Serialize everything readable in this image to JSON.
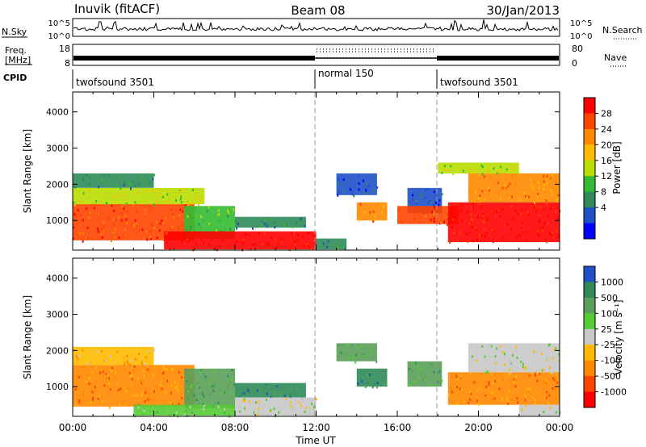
{
  "header": {
    "station": "Inuvik (fitACF)",
    "beam": "Beam 08",
    "date": "30/Jan/2013"
  },
  "strips": {
    "nsky": {
      "left_label": "N.Sky",
      "right_label": "N.Search",
      "left_ticks": [
        "10^5",
        "10^0"
      ],
      "right_ticks": [
        "10^5",
        "10^0"
      ]
    },
    "freq": {
      "left_label_1": "Freq.",
      "left_label_2": "[MHz]",
      "right_label": "Nave",
      "left_ticks": [
        "18",
        "8"
      ],
      "right_ticks": [
        "80",
        "0"
      ]
    },
    "cpid": {
      "label": "CPID",
      "segments": [
        {
          "name": "twofsound 3501",
          "start_hour": 0,
          "end_hour": 12
        },
        {
          "name": "normal 150",
          "start_hour": 12,
          "end_hour": 18
        },
        {
          "name": "twofsound 3501",
          "start_hour": 18,
          "end_hour": 24
        }
      ]
    }
  },
  "chart_data": [
    {
      "type": "heatmap",
      "name": "power",
      "ylabel": "Slant Range [km]",
      "ylim": [
        180,
        4550
      ],
      "yticks": [
        1000,
        2000,
        3000,
        4000
      ],
      "xlim": [
        0,
        24
      ],
      "colorbar": {
        "label": "Power [dB]",
        "ticks": [
          "28",
          "24",
          "20",
          "16",
          "12",
          "8",
          "4"
        ],
        "colors": [
          "#ff0000",
          "#ff4400",
          "#ff8800",
          "#ffbb00",
          "#bbdd00",
          "#33bb33",
          "#2e8b57",
          "#1e50c8",
          "#0000ff"
        ]
      },
      "regions": [
        {
          "x0": 0.0,
          "x1": 6.0,
          "y0": 450,
          "y1": 1450,
          "level": 1
        },
        {
          "x0": 0.0,
          "x1": 6.5,
          "y0": 1450,
          "y1": 1900,
          "level": 4
        },
        {
          "x0": 0.0,
          "x1": 4.0,
          "y0": 1900,
          "y1": 2300,
          "level": 6
        },
        {
          "x0": 5.5,
          "x1": 8.0,
          "y0": 500,
          "y1": 1400,
          "level": 5
        },
        {
          "x0": 8.0,
          "x1": 11.5,
          "y0": 800,
          "y1": 1100,
          "level": 6
        },
        {
          "x0": 4.5,
          "x1": 12.0,
          "y0": 200,
          "y1": 700,
          "level": 0
        },
        {
          "x0": 12.0,
          "x1": 13.5,
          "y0": 200,
          "y1": 500,
          "level": 6
        },
        {
          "x0": 13.0,
          "x1": 15.0,
          "y0": 1700,
          "y1": 2300,
          "level": 7
        },
        {
          "x0": 14.0,
          "x1": 15.5,
          "y0": 1000,
          "y1": 1500,
          "level": 2
        },
        {
          "x0": 16.5,
          "x1": 18.2,
          "y0": 1200,
          "y1": 1900,
          "level": 7
        },
        {
          "x0": 16.0,
          "x1": 19.0,
          "y0": 900,
          "y1": 1400,
          "level": 1
        },
        {
          "x0": 18.5,
          "x1": 24.0,
          "y0": 400,
          "y1": 1500,
          "level": 0
        },
        {
          "x0": 19.5,
          "x1": 24.0,
          "y0": 1500,
          "y1": 2300,
          "level": 2
        },
        {
          "x0": 18.0,
          "x1": 22.0,
          "y0": 2300,
          "y1": 2600,
          "level": 4
        }
      ]
    },
    {
      "type": "heatmap",
      "name": "velocity",
      "ylabel": "Slant Range [km]",
      "xlabel": "Time UT",
      "ylim": [
        180,
        4550
      ],
      "yticks": [
        1000,
        2000,
        3000,
        4000
      ],
      "xlim": [
        0,
        24
      ],
      "xticks": [
        "00:00",
        "04:00",
        "08:00",
        "12:00",
        "16:00",
        "20:00",
        "00:00"
      ],
      "colorbar": {
        "label": "Velocity [m s⁻¹]",
        "ticks": [
          "1000",
          "500",
          "100",
          "25",
          "-25",
          "-100",
          "-500",
          "-1000"
        ],
        "colors": [
          "#1e50c8",
          "#2e8b57",
          "#5aa05a",
          "#55cc33",
          "#c8c8c8",
          "#ffbb00",
          "#ff8800",
          "#ff4400",
          "#ff0000"
        ]
      },
      "regions": [
        {
          "x0": 0.0,
          "x1": 6.0,
          "y0": 450,
          "y1": 1600,
          "level": 6
        },
        {
          "x0": 0.0,
          "x1": 4.0,
          "y0": 1600,
          "y1": 2100,
          "level": 5
        },
        {
          "x0": 5.5,
          "x1": 8.0,
          "y0": 400,
          "y1": 1500,
          "level": 2
        },
        {
          "x0": 8.0,
          "x1": 11.5,
          "y0": 700,
          "y1": 1100,
          "level": 1
        },
        {
          "x0": 3.0,
          "x1": 8.0,
          "y0": 200,
          "y1": 500,
          "level": 3
        },
        {
          "x0": 8.0,
          "x1": 12.0,
          "y0": 200,
          "y1": 700,
          "level": 4
        },
        {
          "x0": 13.0,
          "x1": 15.0,
          "y0": 1700,
          "y1": 2200,
          "level": 2
        },
        {
          "x0": 14.0,
          "x1": 15.5,
          "y0": 1000,
          "y1": 1500,
          "level": 1
        },
        {
          "x0": 16.5,
          "x1": 18.2,
          "y0": 1000,
          "y1": 1700,
          "level": 2
        },
        {
          "x0": 18.5,
          "x1": 24.0,
          "y0": 500,
          "y1": 1400,
          "level": 6
        },
        {
          "x0": 19.5,
          "x1": 24.0,
          "y0": 1400,
          "y1": 2200,
          "level": 4
        },
        {
          "x0": 22.0,
          "x1": 24.0,
          "y0": 200,
          "y1": 500,
          "level": 4
        }
      ]
    }
  ]
}
